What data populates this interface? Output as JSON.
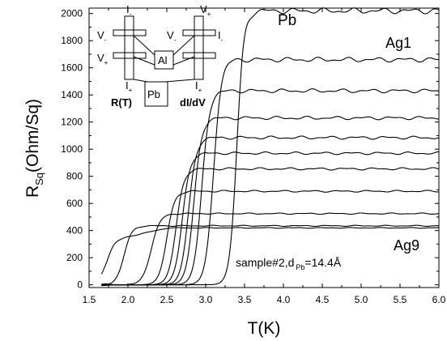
{
  "chart_data": {
    "type": "line",
    "xlabel": "T(K)",
    "ylabel_main": "R",
    "ylabel_sub": "Sq",
    "ylabel_unit": "(Ohm/Sq)",
    "xlim": [
      1.5,
      6.0
    ],
    "ylim": [
      -20,
      2040
    ],
    "xticks": [
      "1.5",
      "2.0",
      "2.5",
      "3.0",
      "3.5",
      "4.0",
      "4.5",
      "5.0",
      "5.5",
      "6.0"
    ],
    "yticks": [
      "0",
      "200",
      "400",
      "600",
      "800",
      "1000",
      "1200",
      "1400",
      "1600",
      "1800",
      "2000"
    ],
    "grid": false,
    "series": [
      {
        "tc": 3.4,
        "width": 0.2,
        "high": 2020,
        "wave": 22
      },
      {
        "tc": 3.1,
        "width": 0.22,
        "high": 1660,
        "wave": 18
      },
      {
        "tc": 2.95,
        "width": 0.22,
        "high": 1430,
        "wave": 15
      },
      {
        "tc": 2.85,
        "width": 0.22,
        "high": 1230,
        "wave": 13
      },
      {
        "tc": 2.78,
        "width": 0.22,
        "high": 1085,
        "wave": 12
      },
      {
        "tc": 2.7,
        "width": 0.22,
        "high": 970,
        "wave": 10
      },
      {
        "tc": 2.62,
        "width": 0.22,
        "high": 855,
        "wave": 9
      },
      {
        "tc": 2.5,
        "width": 0.22,
        "high": 690,
        "wave": 7
      },
      {
        "tc": 2.3,
        "width": 0.25,
        "high": 525,
        "wave": 5
      },
      {
        "tc": 1.95,
        "width": 0.22,
        "high": 435,
        "wave": 4
      },
      {
        "tc": 1.72,
        "width": 0.05,
        "high": 420,
        "wave": 3,
        "step": 320
      }
    ],
    "annotations": {
      "pb": "Pb",
      "ag1": "Ag1",
      "ag9": "Ag9",
      "sample_prefix": "sample#2,d",
      "sample_sub": "Pb",
      "sample_value": "=14.4Å"
    },
    "inset": {
      "rt_label": "R(T)",
      "didv_label": "dI/dV",
      "al_label": "Al",
      "pb_label": "Pb",
      "i_label": "I",
      "v_label": "V",
      "minus": "-",
      "plus": "+"
    }
  }
}
